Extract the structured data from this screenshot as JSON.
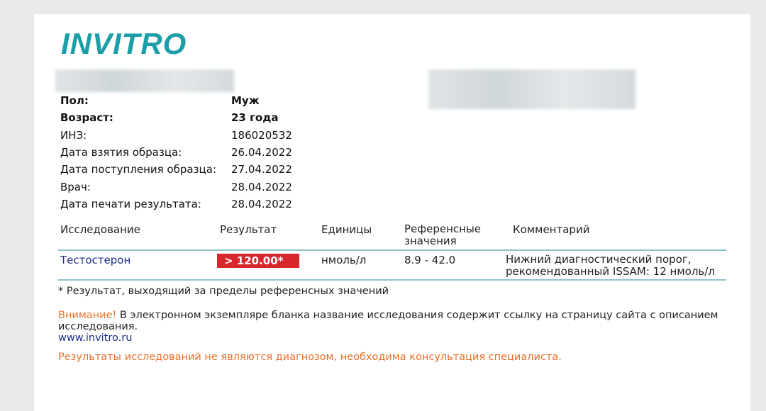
{
  "logo": "INVITRO",
  "patient": [
    {
      "label": "Пол:",
      "value": "Муж",
      "bold": true
    },
    {
      "label": "Возраст:",
      "value": "23 года",
      "bold": true
    },
    {
      "label": "ИНЗ:",
      "value": "186020532"
    },
    {
      "label": "Дата взятия образца:",
      "value": "26.04.2022"
    },
    {
      "label": "Дата поступления образца:",
      "value": "27.04.2022"
    },
    {
      "label": "Врач:",
      "value": "28.04.2022"
    },
    {
      "label": "Дата печати результата:",
      "value": "28.04.2022"
    }
  ],
  "table": {
    "headers": [
      "Исследование",
      "Результат",
      "Единицы",
      "Референсные значения",
      "Комментарий"
    ],
    "rows": [
      {
        "test": "Тестостерон",
        "result": "> 120.00*",
        "units": "нмоль/л",
        "reference": "8.9 - 42.0",
        "comment": "Нижний диагностический порог, рекомендованный ISSAM: 12 нмоль/л"
      }
    ]
  },
  "footnote": "* Результат, выходящий за пределы референсных значений",
  "attention_label": "Внимание!",
  "attention_text": " В электронном экземпляре бланка название исследования содержит ссылку на страницу сайта с описанием исследования.",
  "site": "www.invitro.ru",
  "disclaimer": "Результаты исследований не являются диагнозом, необходима консультация специалиста.",
  "colors": {
    "brand": "#1a9fa8",
    "flag": "#d9262c",
    "warning": "#e8702a",
    "link": "#1e2f8f"
  }
}
